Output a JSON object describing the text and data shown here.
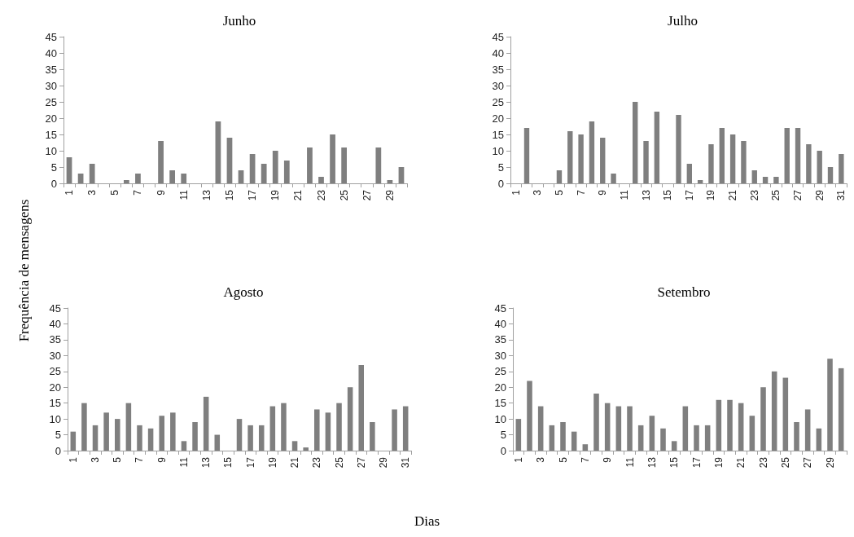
{
  "chart_data": [
    {
      "type": "bar",
      "title": "Junho",
      "ylabel": "Frequência de mensagens",
      "categories": [
        "1",
        null,
        "3",
        null,
        "5",
        null,
        "7",
        null,
        "9",
        null,
        "11",
        null,
        "13",
        null,
        "15",
        null,
        "17",
        null,
        "19",
        null,
        "21",
        null,
        "23",
        null,
        "25",
        null,
        "27",
        null,
        "29",
        null
      ],
      "values": [
        8,
        3,
        6,
        0,
        0,
        1,
        3,
        0,
        13,
        4,
        3,
        0,
        0,
        19,
        14,
        4,
        9,
        6,
        10,
        7,
        0,
        11,
        2,
        15,
        11,
        0,
        0,
        11,
        1,
        5
      ],
      "color": "#7f7f7f",
      "ylim": [
        0,
        45
      ],
      "yticks": [
        0,
        5,
        10,
        15,
        20,
        25,
        30,
        35,
        40,
        45
      ]
    },
    {
      "type": "bar",
      "title": "Julho",
      "categories": [
        "1",
        null,
        "3",
        null,
        "5",
        null,
        "7",
        null,
        "9",
        null,
        "11",
        null,
        "13",
        null,
        "15",
        null,
        "17",
        null,
        "19",
        null,
        "21",
        null,
        "23",
        null,
        "25",
        null,
        "27",
        null,
        "29",
        null,
        "31"
      ],
      "values": [
        0,
        17,
        0,
        0,
        4,
        16,
        15,
        19,
        14,
        3,
        0,
        25,
        13,
        22,
        0,
        21,
        6,
        1,
        12,
        17,
        15,
        13,
        4,
        2,
        2,
        17,
        17,
        12,
        10,
        5,
        9
      ],
      "color": "#7f7f7f",
      "ylim": [
        0,
        45
      ],
      "yticks": [
        0,
        5,
        10,
        15,
        20,
        25,
        30,
        35,
        40,
        45
      ]
    },
    {
      "type": "bar",
      "title": "Agosto",
      "xlabel": "Dias",
      "categories": [
        "1",
        null,
        "3",
        null,
        "5",
        null,
        "7",
        null,
        "9",
        null,
        "11",
        null,
        "13",
        null,
        "15",
        null,
        "17",
        null,
        "19",
        null,
        "21",
        null,
        "23",
        null,
        "25",
        null,
        "27",
        null,
        "29",
        null,
        "31"
      ],
      "values": [
        6,
        15,
        8,
        12,
        10,
        15,
        8,
        7,
        11,
        12,
        3,
        9,
        17,
        5,
        0,
        10,
        8,
        8,
        14,
        15,
        3,
        1,
        13,
        12,
        15,
        20,
        27,
        9,
        0,
        13,
        14
      ],
      "color": "#7f7f7f",
      "ylim": [
        0,
        45
      ],
      "yticks": [
        0,
        5,
        10,
        15,
        20,
        25,
        30,
        35,
        40,
        45
      ]
    },
    {
      "type": "bar",
      "title": "Setembro",
      "categories": [
        "1",
        null,
        "3",
        null,
        "5",
        null,
        "7",
        null,
        "9",
        null,
        "11",
        null,
        "13",
        null,
        "15",
        null,
        "17",
        null,
        "19",
        null,
        "21",
        null,
        "23",
        null,
        "25",
        null,
        "27",
        null,
        "29",
        null
      ],
      "values": [
        10,
        22,
        14,
        8,
        9,
        6,
        2,
        18,
        15,
        14,
        14,
        8,
        11,
        7,
        3,
        14,
        8,
        8,
        16,
        16,
        15,
        11,
        20,
        25,
        23,
        9,
        13,
        7,
        29,
        26
      ],
      "color": "#7f7f7f",
      "ylim": [
        0,
        45
      ],
      "yticks": [
        0,
        5,
        10,
        15,
        20,
        25,
        30,
        35,
        40,
        45
      ]
    }
  ]
}
